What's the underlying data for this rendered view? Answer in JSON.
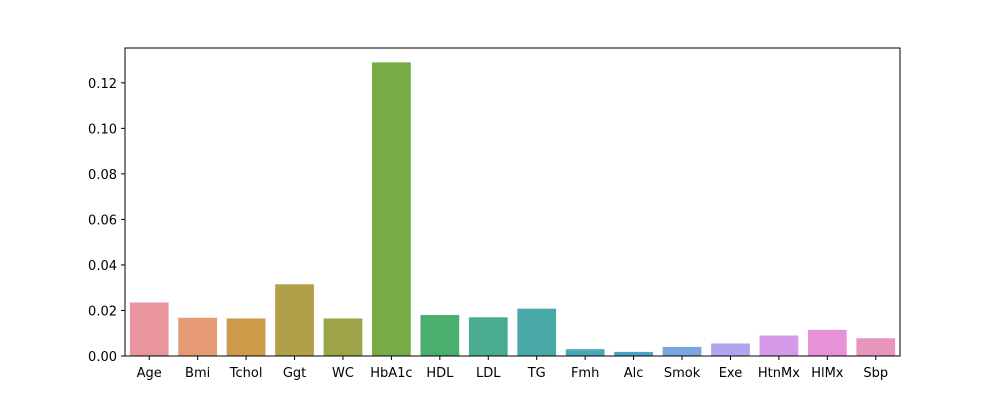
{
  "chart_data": {
    "type": "bar",
    "title": "",
    "xlabel": "",
    "ylabel": "",
    "categories": [
      "Age",
      "Bmi",
      "Tchol",
      "Ggt",
      "WC",
      "HbA1c",
      "HDL",
      "LDL",
      "TG",
      "Fmh",
      "Alc",
      "Smok",
      "Exe",
      "HtnMx",
      "HlMx",
      "Sbp"
    ],
    "values": [
      0.0235,
      0.0168,
      0.0165,
      0.0315,
      0.0165,
      0.129,
      0.018,
      0.017,
      0.0208,
      0.003,
      0.0018,
      0.004,
      0.0055,
      0.009,
      0.0115,
      0.0078
    ],
    "colors": [
      "#e8959e",
      "#e69a74",
      "#cc9a48",
      "#b09f48",
      "#9ea34a",
      "#77ab47",
      "#4aae6e",
      "#4aab8f",
      "#4aa9a6",
      "#4ba7b8",
      "#4ba3c6",
      "#7aa5dd",
      "#b3a3ec",
      "#d69ae8",
      "#e791d8",
      "#e895be"
    ],
    "ylim": [
      0,
      0.1353
    ],
    "yticks": [
      "0.00",
      "0.02",
      "0.04",
      "0.06",
      "0.08",
      "0.10",
      "0.12"
    ],
    "grid": false,
    "legend": "none"
  }
}
